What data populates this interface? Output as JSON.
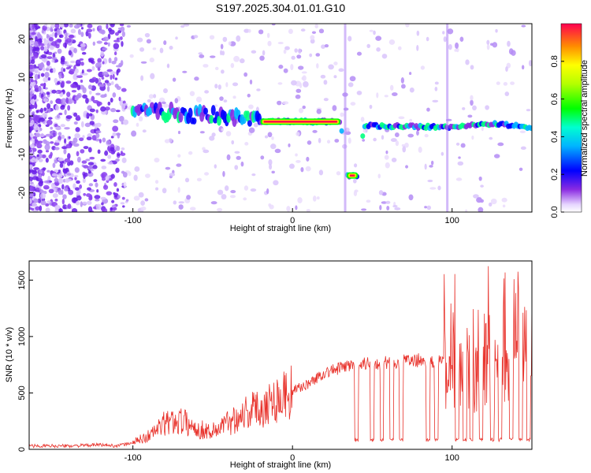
{
  "title": "S197.2025.304.01.01.G10",
  "colors": {
    "snr_line": "#e8312a",
    "dot": "#6a1ee8"
  },
  "chart_data": [
    {
      "type": "heatmap",
      "name": "spectrogram",
      "xlabel": "Height of straight line (km)",
      "ylabel": "Frequency (Hz)",
      "xlim": [
        -165,
        150
      ],
      "ylim": [
        -25,
        24
      ],
      "xticks": [
        -100,
        0,
        100
      ],
      "yticks": [
        20,
        10,
        0,
        -10,
        -20
      ],
      "colorbar": {
        "label": "Normalized spectral amplitude",
        "range": [
          0.0,
          1.0
        ],
        "ticks": [
          "0.8",
          "0.6",
          "0.4",
          "0.2",
          "0.0"
        ]
      },
      "ridge": [
        {
          "x": -100,
          "f": 2
        },
        {
          "x": -80,
          "f": 1
        },
        {
          "x": -60,
          "f": 0
        },
        {
          "x": -40,
          "f": 0
        },
        {
          "x": -20,
          "f": -1.5
        },
        {
          "x": 0,
          "f": -1.5
        },
        {
          "x": 30,
          "f": -1.5
        },
        {
          "x": 35,
          "f": -15.5
        },
        {
          "x": 40,
          "f": -15.5
        },
        {
          "x": 45,
          "f": -2.5
        },
        {
          "x": 100,
          "f": -3
        },
        {
          "x": 125,
          "f": -2
        },
        {
          "x": 150,
          "f": -3
        }
      ]
    },
    {
      "type": "line",
      "name": "snr",
      "xlabel": "Height of straight line (km)",
      "ylabel": "SNR (10 * v/v)",
      "xlim": [
        -165,
        150
      ],
      "ylim": [
        0,
        1670
      ],
      "xticks": [
        -100,
        0,
        100
      ],
      "yticks": [
        0,
        500,
        1000,
        1500
      ],
      "x": [
        -165,
        -140,
        -120,
        -110,
        -100,
        -90,
        -80,
        -70,
        -60,
        -50,
        -40,
        -30,
        -20,
        -10,
        0,
        10,
        20,
        30,
        40,
        50,
        60,
        70,
        80,
        90,
        100,
        110,
        120,
        130,
        140,
        150
      ],
      "y": [
        30,
        30,
        40,
        30,
        60,
        120,
        230,
        260,
        180,
        160,
        240,
        330,
        370,
        450,
        520,
        580,
        680,
        720,
        760,
        760,
        770,
        780,
        790,
        760,
        840,
        750,
        880,
        950,
        1000,
        900
      ]
    }
  ]
}
